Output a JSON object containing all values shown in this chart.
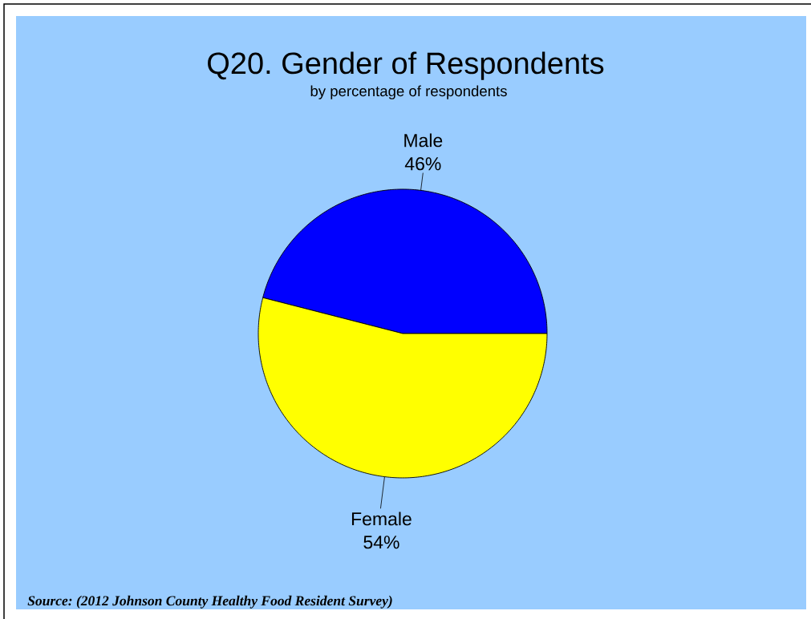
{
  "chart_data": {
    "type": "pie",
    "title": "Q20. Gender of Respondents",
    "subtitle": "by percentage of respondents",
    "categories": [
      "Male",
      "Female"
    ],
    "values": [
      46,
      54
    ],
    "colors": [
      "#0000ff",
      "#ffff00"
    ],
    "value_labels": [
      "46%",
      "54%"
    ],
    "annotations": [
      "Source: (2012 Johnson County Healthy Food Resident Survey)"
    ]
  }
}
